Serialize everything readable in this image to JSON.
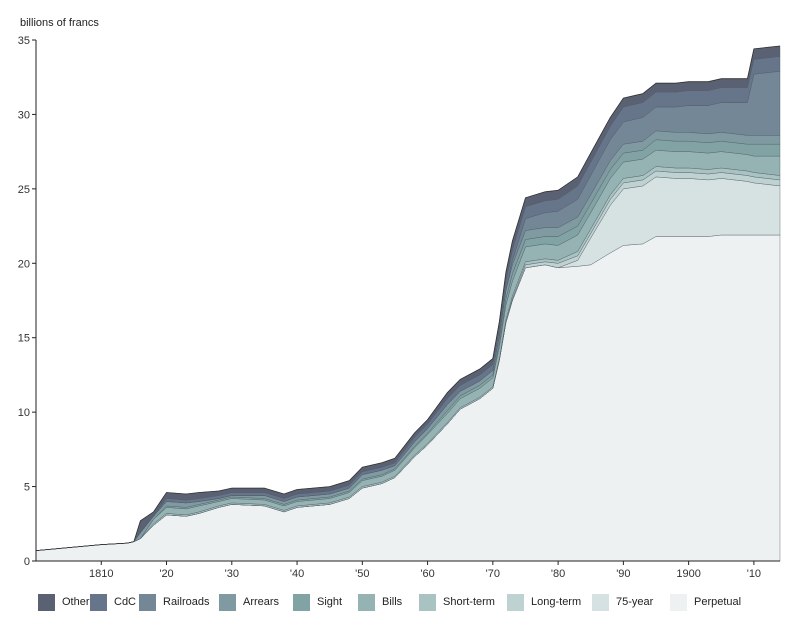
{
  "chart_data": {
    "type": "area",
    "stacked": true,
    "title": "",
    "ylabel": "billions of francs",
    "xlabel": "",
    "xlim": [
      1800,
      1914
    ],
    "ylim": [
      0,
      35
    ],
    "yticks": [
      0,
      5,
      10,
      15,
      20,
      25,
      30,
      35
    ],
    "xticks": [
      {
        "value": 1810,
        "label": "1810"
      },
      {
        "value": 1820,
        "label": "'20"
      },
      {
        "value": 1830,
        "label": "'30"
      },
      {
        "value": 1840,
        "label": "'40"
      },
      {
        "value": 1850,
        "label": "'50"
      },
      {
        "value": 1860,
        "label": "'60"
      },
      {
        "value": 1870,
        "label": "'70"
      },
      {
        "value": 1880,
        "label": "'80"
      },
      {
        "value": 1890,
        "label": "'90"
      },
      {
        "value": 1900,
        "label": "1900"
      },
      {
        "value": 1910,
        "label": "'10"
      }
    ],
    "grid": false,
    "legend_position": "bottom",
    "x": [
      1800,
      1805,
      1810,
      1814,
      1815,
      1816,
      1818,
      1820,
      1823,
      1825,
      1828,
      1830,
      1835,
      1838,
      1840,
      1845,
      1848,
      1850,
      1853,
      1855,
      1858,
      1860,
      1863,
      1865,
      1868,
      1870,
      1871,
      1872,
      1873,
      1875,
      1878,
      1880,
      1883,
      1885,
      1888,
      1890,
      1893,
      1895,
      1898,
      1900,
      1903,
      1905,
      1907,
      1909,
      1910,
      1912,
      1914
    ],
    "series": [
      {
        "name": "Perpetual",
        "color": "#edf1f1",
        "values": [
          0.7,
          0.9,
          1.1,
          1.2,
          1.3,
          1.5,
          2.4,
          3.1,
          3.0,
          3.2,
          3.6,
          3.8,
          3.7,
          3.3,
          3.6,
          3.8,
          4.2,
          4.9,
          5.2,
          5.6,
          7.0,
          7.8,
          9.2,
          10.2,
          10.9,
          11.6,
          13.5,
          16.0,
          17.5,
          19.7,
          19.9,
          19.7,
          19.8,
          19.9,
          20.7,
          21.2,
          21.3,
          21.8,
          21.8,
          21.8,
          21.8,
          21.9,
          21.9,
          21.9,
          21.9,
          21.9,
          21.9
        ]
      },
      {
        "name": "75-year",
        "color": "#d5e2e1",
        "values": [
          0,
          0,
          0,
          0,
          0,
          0,
          0,
          0,
          0,
          0,
          0,
          0,
          0,
          0,
          0,
          0,
          0,
          0,
          0,
          0,
          0,
          0,
          0,
          0,
          0,
          0,
          0,
          0,
          0,
          0,
          0,
          0,
          0.4,
          1.8,
          3.2,
          3.8,
          3.9,
          4.0,
          3.9,
          3.9,
          3.8,
          3.8,
          3.7,
          3.6,
          3.5,
          3.4,
          3.3
        ]
      },
      {
        "name": "Long-term",
        "color": "#bfd2d2",
        "values": [
          0,
          0,
          0,
          0,
          0,
          0,
          0,
          0,
          0,
          0,
          0,
          0,
          0,
          0,
          0,
          0,
          0,
          0,
          0,
          0,
          0,
          0,
          0,
          0,
          0,
          0,
          0,
          0,
          0.1,
          0.2,
          0.2,
          0.3,
          0.3,
          0.3,
          0.4,
          0.4,
          0.4,
          0.4,
          0.4,
          0.4,
          0.4,
          0.4,
          0.4,
          0.4,
          0.4,
          0.4,
          0.4
        ]
      },
      {
        "name": "Short-term",
        "color": "#a8c3c2",
        "values": [
          0,
          0,
          0,
          0,
          0,
          0,
          0.1,
          0.1,
          0.1,
          0.1,
          0.1,
          0.1,
          0.1,
          0.1,
          0.1,
          0.1,
          0.1,
          0.1,
          0.1,
          0.1,
          0.1,
          0.1,
          0.1,
          0.1,
          0.1,
          0.1,
          0.1,
          0.2,
          0.2,
          0.2,
          0.2,
          0.2,
          0.3,
          0.3,
          0.3,
          0.3,
          0.3,
          0.3,
          0.3,
          0.3,
          0.3,
          0.3,
          0.3,
          0.3,
          0.3,
          0.3,
          0.3
        ]
      },
      {
        "name": "Bills",
        "color": "#95b3b2",
        "values": [
          0,
          0,
          0,
          0,
          0,
          0,
          0.3,
          0.4,
          0.4,
          0.4,
          0.3,
          0.3,
          0.3,
          0.3,
          0.3,
          0.3,
          0.3,
          0.4,
          0.4,
          0.4,
          0.5,
          0.6,
          0.6,
          0.6,
          0.6,
          0.6,
          0.8,
          1.0,
          1.0,
          1.0,
          1.0,
          1.0,
          1.1,
          1.1,
          1.1,
          1.1,
          1.1,
          1.1,
          1.1,
          1.1,
          1.1,
          1.1,
          1.1,
          1.1,
          1.1,
          1.2,
          1.3
        ]
      },
      {
        "name": "Sight",
        "color": "#82a3a3",
        "values": [
          0,
          0,
          0,
          0,
          0,
          0,
          0,
          0.1,
          0.1,
          0.1,
          0.1,
          0.1,
          0.1,
          0.1,
          0.1,
          0.1,
          0.1,
          0.1,
          0.1,
          0.1,
          0.1,
          0.1,
          0.2,
          0.2,
          0.2,
          0.2,
          0.3,
          0.4,
          0.5,
          0.5,
          0.5,
          0.6,
          0.6,
          0.6,
          0.6,
          0.6,
          0.6,
          0.7,
          0.7,
          0.7,
          0.7,
          0.7,
          0.7,
          0.7,
          0.8,
          0.8,
          0.8
        ]
      },
      {
        "name": "Arrears",
        "color": "#7f9aa0",
        "values": [
          0,
          0,
          0,
          0,
          0,
          0.4,
          0.2,
          0.3,
          0.3,
          0.2,
          0.1,
          0.1,
          0.2,
          0.2,
          0.2,
          0.2,
          0.2,
          0.3,
          0.3,
          0.2,
          0.3,
          0.3,
          0.4,
          0.3,
          0.3,
          0.3,
          0.4,
          0.6,
          0.6,
          0.6,
          0.6,
          0.6,
          0.6,
          0.6,
          0.6,
          0.6,
          0.6,
          0.6,
          0.6,
          0.6,
          0.6,
          0.6,
          0.6,
          0.6,
          0.6,
          0.6,
          0.6
        ]
      },
      {
        "name": "Railroads",
        "color": "#738796",
        "values": [
          0,
          0,
          0,
          0,
          0,
          0,
          0,
          0,
          0,
          0,
          0,
          0,
          0,
          0,
          0,
          0,
          0,
          0,
          0,
          0,
          0,
          0,
          0,
          0,
          0,
          0,
          0,
          0,
          0.3,
          0.8,
          1.0,
          1.1,
          1.2,
          1.3,
          1.4,
          1.5,
          1.6,
          1.6,
          1.7,
          1.8,
          1.9,
          2.0,
          2.1,
          2.2,
          4.1,
          4.2,
          4.3
        ]
      },
      {
        "name": "CdC",
        "color": "#66758a",
        "values": [
          0,
          0,
          0,
          0,
          0,
          0,
          0,
          0.2,
          0.2,
          0.2,
          0.2,
          0.2,
          0.2,
          0.2,
          0.2,
          0.2,
          0.2,
          0.2,
          0.2,
          0.2,
          0.3,
          0.3,
          0.4,
          0.4,
          0.4,
          0.4,
          0.5,
          0.6,
          0.7,
          0.8,
          0.8,
          0.8,
          0.9,
          0.9,
          0.9,
          1.0,
          1.0,
          1.0,
          1.0,
          1.0,
          1.0,
          1.0,
          1.0,
          1.0,
          1.0,
          1.0,
          1.0
        ]
      },
      {
        "name": "Other",
        "color": "#5a6173",
        "values": [
          0,
          0,
          0,
          0,
          0,
          0.8,
          0.3,
          0.4,
          0.4,
          0.4,
          0.3,
          0.3,
          0.3,
          0.3,
          0.3,
          0.3,
          0.3,
          0.3,
          0.3,
          0.3,
          0.3,
          0.3,
          0.4,
          0.4,
          0.4,
          0.4,
          0.5,
          0.6,
          0.6,
          0.6,
          0.6,
          0.6,
          0.6,
          0.6,
          0.6,
          0.6,
          0.6,
          0.6,
          0.6,
          0.6,
          0.6,
          0.6,
          0.6,
          0.6,
          0.7,
          0.7,
          0.7
        ]
      }
    ],
    "legend": [
      "Other",
      "CdC",
      "Railroads",
      "Arrears",
      "Sight",
      "Bills",
      "Short-term",
      "Long-term",
      "75-year",
      "Perpetual"
    ]
  }
}
